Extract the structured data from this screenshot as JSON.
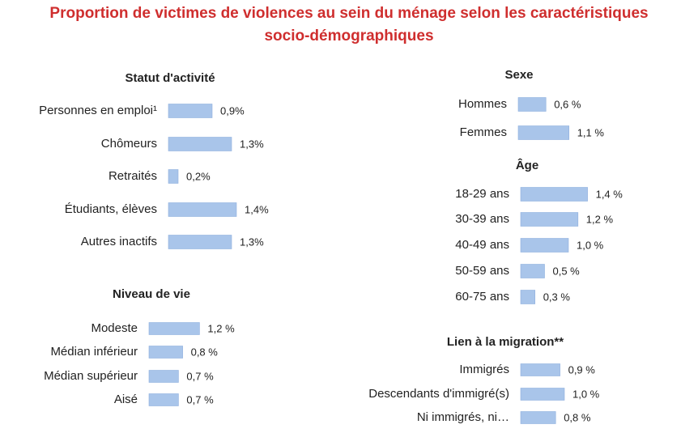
{
  "title": "Proportion de victimes de violences au sein du ménage selon les caractéristiques socio-démographiques",
  "chart_data": [
    {
      "type": "bar",
      "orientation": "horizontal",
      "title": "Statut d'activité",
      "color": "#a9c5ea",
      "categories": [
        "Personnes en emploi¹",
        "Chômeurs",
        "Retraités",
        "Étudiants, élèves",
        "Autres inactifs"
      ],
      "values": [
        0.9,
        1.3,
        0.2,
        1.4,
        1.3
      ],
      "value_labels": [
        "0,9%",
        "1,3%",
        "0,2%",
        "1,4%",
        "1,3%"
      ]
    },
    {
      "type": "bar",
      "orientation": "horizontal",
      "title": "Niveau de vie",
      "color": "#a9c5ea",
      "categories": [
        "Modeste",
        "Médian inférieur",
        "Médian supérieur",
        "Aisé"
      ],
      "values": [
        1.2,
        0.8,
        0.7,
        0.7
      ],
      "value_labels": [
        "1,2 %",
        "0,8 %",
        "0,7 %",
        "0,7 %"
      ]
    },
    {
      "type": "bar",
      "orientation": "horizontal",
      "title": "Sexe",
      "color": "#a9c5ea",
      "categories": [
        "Hommes",
        "Femmes"
      ],
      "values": [
        0.6,
        1.1
      ],
      "value_labels": [
        "0,6 %",
        "1,1 %"
      ]
    },
    {
      "type": "bar",
      "orientation": "horizontal",
      "title": "Âge",
      "color": "#a9c5ea",
      "categories": [
        "18-29 ans",
        "30-39 ans",
        "40-49 ans",
        "50-59 ans",
        "60-75 ans"
      ],
      "values": [
        1.4,
        1.2,
        1.0,
        0.5,
        0.3
      ],
      "value_labels": [
        "1,4 %",
        "1,2 %",
        "1,0 %",
        "0,5 %",
        "0,3 %"
      ]
    },
    {
      "type": "bar",
      "orientation": "horizontal",
      "title": "Lien à la migration**",
      "color": "#a9c5ea",
      "categories": [
        "Immigrés",
        "Descendants d'immigré(s)",
        "Ni immigrés, ni…"
      ],
      "values": [
        0.9,
        1.0,
        0.8
      ],
      "value_labels": [
        "0,9 %",
        "1,0 %",
        "0,8 %"
      ]
    }
  ]
}
